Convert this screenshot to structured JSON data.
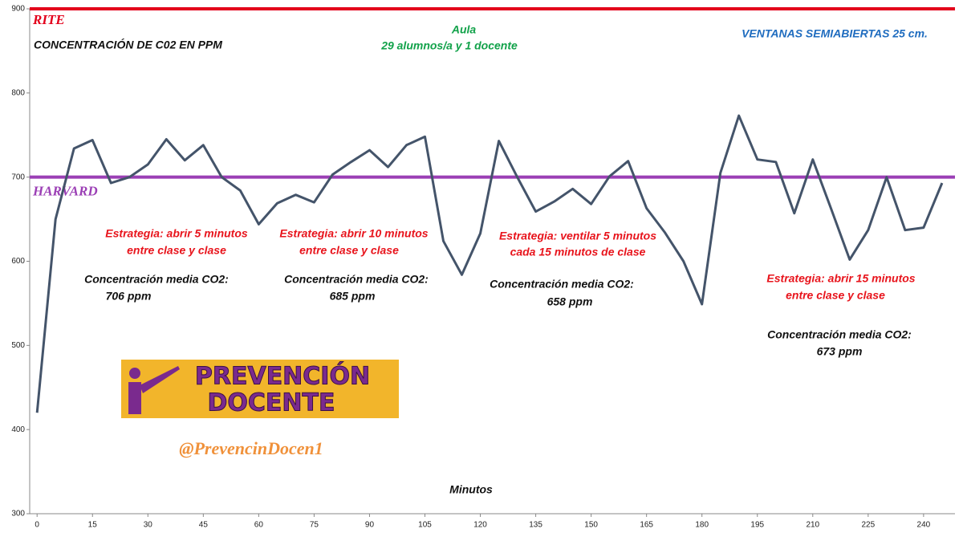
{
  "chart_data": {
    "type": "line",
    "title": "CONCENTRACIÓN  DE C02  EN  PPM",
    "subtitle": [
      "Aula",
      "29 alumnos/a  y 1 docente"
    ],
    "note": "VENTANAS SEMIABIERTAS 25 cm.",
    "xlabel": "Minutos",
    "x": [
      0,
      5,
      10,
      15,
      20,
      25,
      30,
      35,
      40,
      45,
      50,
      55,
      60,
      65,
      70,
      75,
      80,
      85,
      90,
      95,
      100,
      105,
      110,
      115,
      120,
      125,
      130,
      135,
      140,
      145,
      150,
      155,
      160,
      165,
      170,
      175,
      180,
      185,
      190,
      195,
      200,
      205,
      210,
      215,
      220,
      225,
      230,
      235,
      240,
      245
    ],
    "series": [
      {
        "color": "#44546a",
        "values": [
          420,
          650,
          734,
          744,
          693,
          700,
          715,
          745,
          720,
          738,
          700,
          684,
          644,
          669,
          679,
          670,
          703,
          718,
          732,
          712,
          738,
          748,
          624,
          584,
          633,
          743,
          700,
          659,
          671,
          686,
          668,
          701,
          719,
          663,
          634,
          600,
          549,
          705,
          773,
          721,
          718,
          657,
          721,
          662,
          602,
          637,
          700,
          637,
          640,
          693
        ]
      }
    ],
    "xlim": [
      -2,
      248.5
    ],
    "ylim": [
      300,
      900
    ],
    "xticks": [
      0,
      15,
      30,
      45,
      60,
      75,
      90,
      105,
      120,
      135,
      150,
      165,
      180,
      195,
      210,
      225,
      240
    ],
    "yticks": [
      300,
      400,
      500,
      600,
      700,
      800,
      900
    ],
    "ref_lines": [
      {
        "name": "RITE",
        "value": 900,
        "color": "#e3001b"
      },
      {
        "name": "HARVARD",
        "value": 700,
        "color": "#9b3fb5"
      }
    ],
    "annotations": [
      {
        "lines": [
          "Estrategia:  abrir 5 minutos",
          "entre clase y clase"
        ]
      },
      {
        "lines": [
          "Concentración media CO2:",
          "706  ppm"
        ]
      },
      {
        "lines": [
          "Estrategia:  abrir 10 minutos",
          "entre clase y clase"
        ]
      },
      {
        "lines": [
          "Concentración media CO2:",
          "685 ppm"
        ]
      },
      {
        "lines": [
          "Estrategia:  ventilar  5 minutos",
          "cada 15 minutos de clase"
        ]
      },
      {
        "lines": [
          "Concentración media CO2:",
          "658 ppm"
        ]
      },
      {
        "lines": [
          "Estrategia:  abrir 15 minutos",
          "entre clase y clase"
        ]
      },
      {
        "lines": [
          "Concentración media CO2:",
          "673 ppm"
        ]
      }
    ],
    "logo": [
      "PREVENCIÓN",
      "DOCENTE"
    ],
    "handle": "@PrevencinDocen1"
  }
}
